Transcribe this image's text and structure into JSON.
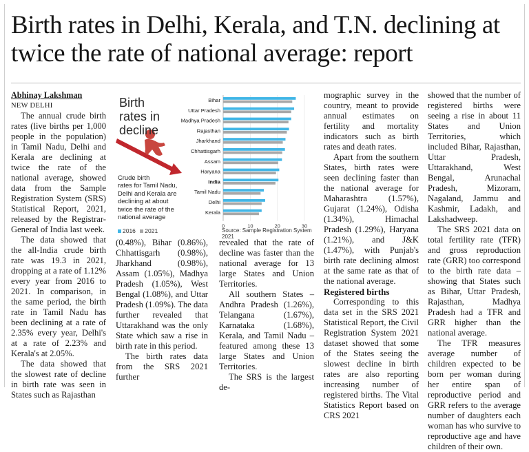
{
  "headline": "Birth rates in Delhi, Kerala, and T.N. declining at twice the rate of national average: report",
  "byline": "Abhinay Lakshman",
  "dateline": "NEW DELHI",
  "graphic": {
    "title_lines": [
      "Birth",
      "rates in",
      "decline"
    ],
    "description_lines": [
      "Crude birth",
      "rates for Tamil Nadu,",
      "Delhi and Kerala are",
      "declining at about",
      "twice the rate of the",
      "national average"
    ],
    "legend": {
      "a": "2016",
      "b": "2021"
    },
    "source": "Source: Sample Registration System 2021",
    "colors": {
      "y2016": "#41b6e6",
      "y2021": "#a8a8a8",
      "arrow": "#c0272d",
      "figure": "#c8463f"
    }
  },
  "chart_data": {
    "type": "bar",
    "orientation": "horizontal",
    "categories": [
      "Bihar",
      "Uttar Pradesh",
      "Madhya Pradesh",
      "Rajasthan",
      "Jharkhand",
      "Chhattisgarh",
      "Assam",
      "Haryana",
      "India",
      "Tamil Nadu",
      "Delhi",
      "Kerala"
    ],
    "series": [
      {
        "name": "2016",
        "values": [
          26.8,
          26.2,
          25.1,
          24.3,
          23.0,
          22.8,
          21.7,
          20.7,
          20.4,
          15.0,
          15.5,
          14.2
        ]
      },
      {
        "name": "2021",
        "values": [
          25.5,
          25.1,
          24.1,
          23.5,
          22.0,
          21.8,
          20.3,
          19.5,
          19.3,
          13.8,
          14.2,
          13.2
        ]
      }
    ],
    "xlim": [
      0,
      30
    ],
    "xticks": [
      0,
      10,
      20,
      30
    ],
    "highlight": "India"
  },
  "col1": {
    "paragraphs": [
      "The annual crude birth rates (live births per 1,000 people in the population) in Tamil Nadu, Delhi and Kerala are declining at twice the rate of the national average, showed data from the Sample Registration System (SRS) Statistical Report, 2021, released by the Registrar-General of India last week.",
      "The data showed that the all-India crude birth rate was 19.3 in 2021, dropping at a rate of 1.12% every year from 2016 to 2021. In comparison, in the same period, the birth rate in Tamil Nadu has been declining at a rate of 2.35% every year, Delhi's at a rate of 2.23% and Kerala's at 2.05%.",
      "The data showed that the slowest rate of decline in birth rate was seen in States such as Rajasthan"
    ]
  },
  "col2": {
    "paragraphs": [
      "(0.48%), Bihar (0.86%), Chhattisgarh (0.98%), Jharkhand (0.98%), Assam (1.05%), Madhya Pradesh (1.05%), West Bengal (1.08%), and Uttar Pradesh (1.09%). The data further revealed that Uttarakhand was the only State which saw a rise in birth rate in this period.",
      "The birth rates data from the SRS 2021 further"
    ]
  },
  "col3": {
    "paragraphs": [
      "revealed that the rate of decline was faster than the national average for 13 large States and Union Territories.",
      "All southern States – Andhra Pradesh (1.26%), Telangana (1.67%), Karnataka (1.68%), Kerala, and Tamil Nadu – featured among these 13 large States and Union Territories.",
      "The SRS is the largest de-"
    ]
  },
  "col4": {
    "paragraphs": [
      "mographic survey in the country, meant to provide annual estimates on fertility and mortality indicators such as birth rates and death rates.",
      "Apart from the southern States, birth rates were seen declining faster than the national average for Maharashtra (1.57%), Gujarat (1.24%), Odisha (1.34%), Himachal Pradesh (1.29%), Haryana (1.21%), and J&K (1.47%), with Punjab's birth rate declining almost at the same rate as that of the national average."
    ],
    "subhead": "Registered births",
    "after_subhead": "Corresponding to this data set in the SRS 2021 Statistical Report, the Civil Registration System 2021 dataset showed that some of the States seeing the slowest decline in birth rates are also reporting increasing number of registered births. The Vital Statistics Report based on CRS 2021"
  },
  "col5": {
    "paragraphs": [
      "showed that the number of registered births were seeing a rise in about 11 States and Union Territories, which included Bihar, Rajasthan, Uttar Pradesh, Uttarakhand, West Bengal, Arunachal Pradesh, Mizoram, Nagaland, Jammu and Kashmir, Ladakh, and Lakshadweep.",
      "The SRS 2021 data on total fertility rate (TFR) and gross reproduction rate (GRR) too correspond to the birth rate data – showing that States such as Bihar, Uttar Pradesh, Rajasthan, Madhya Pradesh had a TFR and GRR higher than the national average.",
      "The TFR measures average number of children expected to be born per woman during her entire span of reproductive period and GRR refers to the average number of daughters each woman has who survive to reproductive age and have children of their own."
    ]
  }
}
